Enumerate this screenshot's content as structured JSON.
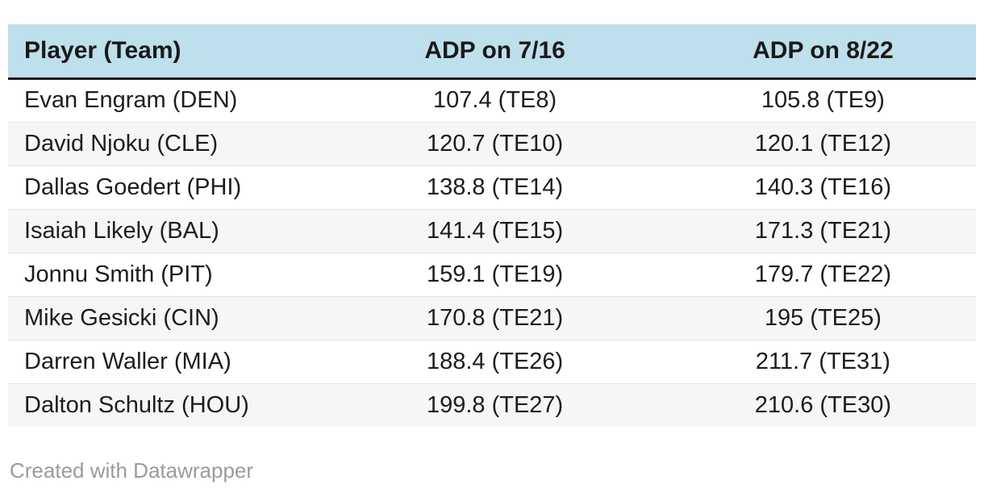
{
  "chart_data": {
    "type": "table",
    "columns": [
      "Player (Team)",
      "ADP on 7/16",
      "ADP on 8/22"
    ],
    "rows": [
      [
        "Evan Engram (DEN)",
        "107.4 (TE8)",
        "105.8 (TE9)"
      ],
      [
        "David Njoku (CLE)",
        "120.7 (TE10)",
        "120.1 (TE12)"
      ],
      [
        "Dallas Goedert (PHI)",
        "138.8 (TE14)",
        "140.3 (TE16)"
      ],
      [
        "Isaiah Likely (BAL)",
        "141.4 (TE15)",
        "171.3 (TE21)"
      ],
      [
        "Jonnu Smith (PIT)",
        "159.1 (TE19)",
        "179.7 (TE22)"
      ],
      [
        "Mike Gesicki (CIN)",
        "170.8 (TE21)",
        "195 (TE25)"
      ],
      [
        "Darren Waller (MIA)",
        "188.4 (TE26)",
        "211.7 (TE31)"
      ],
      [
        "Dalton Schultz (HOU)",
        "199.8 (TE27)",
        "210.6 (TE30)"
      ]
    ],
    "legend_position": "none",
    "grid": "row-stripes"
  },
  "table": {
    "columns": [
      {
        "label": "Player (Team)",
        "align": "left"
      },
      {
        "label": "ADP on 7/16",
        "align": "center"
      },
      {
        "label": "ADP on 8/22",
        "align": "center"
      }
    ],
    "rows": [
      {
        "player": "Evan Engram (DEN)",
        "adp_on_7_16": "107.4 (TE8)",
        "adp_on_8_22": "105.8 (TE9)"
      },
      {
        "player": "David Njoku (CLE)",
        "adp_on_7_16": "120.7 (TE10)",
        "adp_on_8_22": "120.1 (TE12)"
      },
      {
        "player": "Dallas Goedert (PHI)",
        "adp_on_7_16": "138.8 (TE14)",
        "adp_on_8_22": "140.3 (TE16)"
      },
      {
        "player": "Isaiah Likely (BAL)",
        "adp_on_7_16": "141.4 (TE15)",
        "adp_on_8_22": "171.3 (TE21)"
      },
      {
        "player": "Jonnu Smith (PIT)",
        "adp_on_7_16": "159.1 (TE19)",
        "adp_on_8_22": "179.7 (TE22)"
      },
      {
        "player": "Mike Gesicki (CIN)",
        "adp_on_7_16": "170.8 (TE21)",
        "adp_on_8_22": "195 (TE25)"
      },
      {
        "player": "Darren Waller (MIA)",
        "adp_on_7_16": "188.4 (TE26)",
        "adp_on_8_22": "211.7 (TE31)"
      },
      {
        "player": "Dalton Schultz (HOU)",
        "adp_on_7_16": "199.8 (TE27)",
        "adp_on_8_22": "210.6 (TE30)"
      }
    ]
  },
  "footer": {
    "credit": "Created with Datawrapper"
  },
  "colors": {
    "header_bg": "#bedfec",
    "stripe_bg": "#f6f6f6",
    "divider": "#e4e4e4",
    "header_border": "#1a1a1a",
    "text": "#1d1d1d",
    "footer_text": "#9b9b9b"
  }
}
